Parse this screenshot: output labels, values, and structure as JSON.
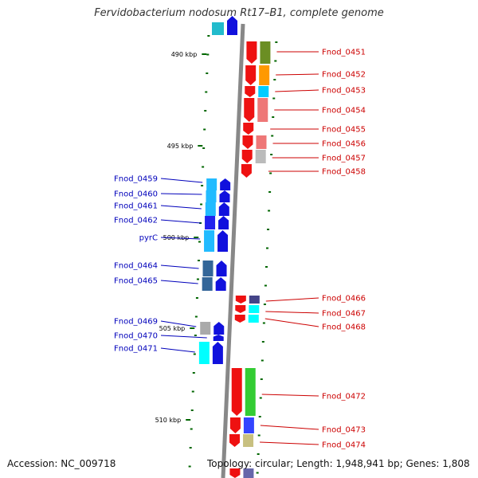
{
  "title": "Fervidobacterium nodosum Rt17–B1, complete genome",
  "footer": {
    "accession": "Accession: NC_009718",
    "topology": "Topology: circular; Length: 1,948,941 bp; Genes: 1,808"
  },
  "scale_labels": [
    "490 kbp",
    "495 kbp",
    "500 kbp",
    "505 kbp",
    "510 kbp"
  ],
  "colors": {
    "forward_strand_label": "#cc0000",
    "reverse_strand_label": "#0000bb",
    "forward_arrow": "#ee1111",
    "reverse_arrow": "#1111dd",
    "backbone": "#888888",
    "tick": "#006600"
  },
  "genes_right": [
    {
      "label": "Fnod_0451",
      "cog": "#6b8e23"
    },
    {
      "label": "Fnod_0452",
      "cog": "#ff9900"
    },
    {
      "label": "Fnod_0453",
      "cog": "#00ccff"
    },
    {
      "label": "Fnod_0454",
      "cog": "#ee7777"
    },
    {
      "label": "Fnod_0455",
      "cog": ""
    },
    {
      "label": "Fnod_0456",
      "cog": "#ee7777"
    },
    {
      "label": "Fnod_0457",
      "cog": "#bbbbbb"
    },
    {
      "label": "Fnod_0458",
      "cog": ""
    },
    {
      "label": "Fnod_0466",
      "cog": "#444488"
    },
    {
      "label": "Fnod_0467",
      "cog": "#00ffff"
    },
    {
      "label": "Fnod_0468",
      "cog": "#00ffff"
    },
    {
      "label": "Fnod_0472",
      "cog": "#33cc33"
    },
    {
      "label": "Fnod_0473",
      "cog": "#3344ff"
    },
    {
      "label": "Fnod_0474",
      "cog": "#c8c080"
    }
  ],
  "genes_left": [
    {
      "label": "Fnod_0459",
      "cog": "#22bbff"
    },
    {
      "label": "Fnod_0460",
      "cog": "#22bbff"
    },
    {
      "label": "Fnod_0461",
      "cog": "#22bbff"
    },
    {
      "label": "Fnod_0462",
      "cog": "#2222ee"
    },
    {
      "label": "pyrC",
      "cog": "#22bbff"
    },
    {
      "label": "Fnod_0464",
      "cog": "#336699"
    },
    {
      "label": "Fnod_0465",
      "cog": "#336699"
    },
    {
      "label": "Fnod_0469",
      "cog": "#aaaaaa"
    },
    {
      "label": "Fnod_0470",
      "cog": ""
    },
    {
      "label": "Fnod_0471",
      "cog": "#00ffff"
    }
  ]
}
